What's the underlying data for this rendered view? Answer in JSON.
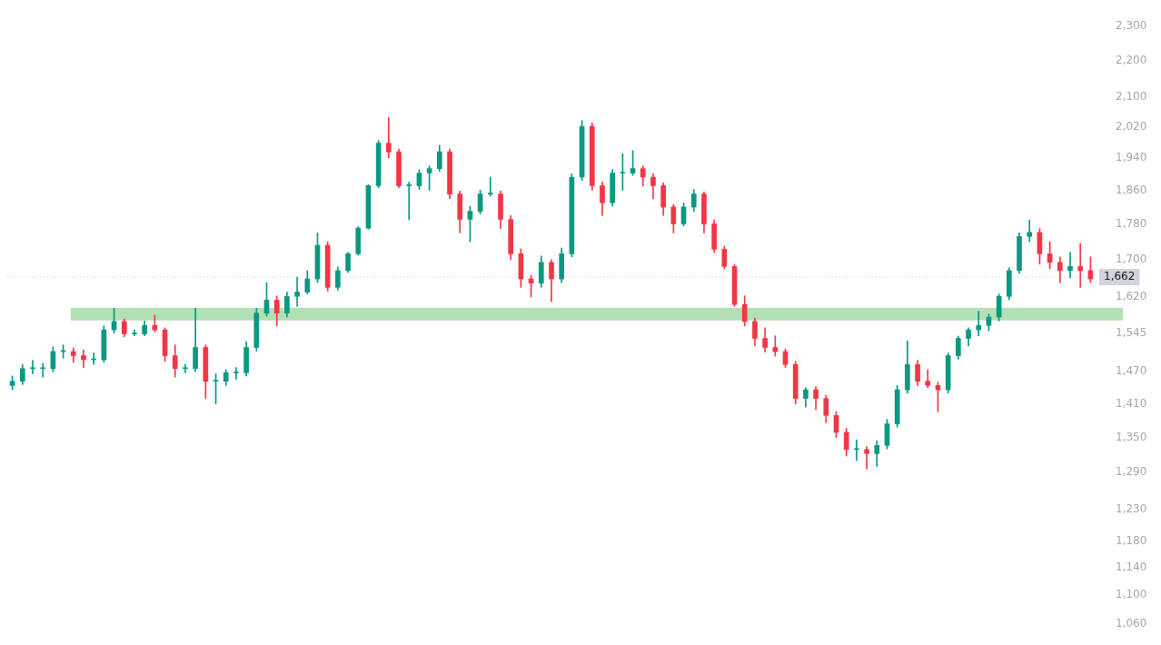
{
  "chart_data": {
    "type": "candlestick",
    "log": true,
    "tick_labels": "y",
    "grid": false,
    "legend": false,
    "categories": [
      null,
      null,
      null,
      null,
      null,
      null,
      null,
      null,
      null,
      null,
      null,
      null,
      null,
      null,
      null,
      null,
      null,
      null,
      null,
      null,
      null,
      null,
      null,
      null,
      null,
      null,
      null,
      null,
      null,
      null,
      null,
      null,
      null,
      null,
      null,
      null,
      null,
      null,
      null,
      null,
      null,
      null,
      null,
      null,
      null,
      null,
      null,
      null,
      null,
      null,
      null,
      null,
      null,
      null,
      null,
      null,
      null,
      null,
      null,
      null,
      null,
      null,
      null,
      null,
      null,
      null,
      null,
      null,
      null,
      null,
      null,
      null,
      null,
      null,
      null,
      null,
      null,
      null,
      null,
      null,
      null,
      null,
      null,
      null,
      null,
      null,
      null,
      null,
      null,
      null,
      null,
      null,
      null,
      null,
      null,
      null,
      null,
      null,
      null,
      null,
      null,
      null,
      null,
      null,
      null,
      null,
      null
    ],
    "ohlc": [
      [
        1444,
        1462,
        1436,
        1452
      ],
      [
        1452,
        1484,
        1446,
        1476
      ],
      [
        1476,
        1492,
        1466,
        1476
      ],
      [
        1476,
        1486,
        1460,
        1476
      ],
      [
        1476,
        1518,
        1470,
        1509
      ],
      [
        1509,
        1522,
        1496,
        1509
      ],
      [
        1509,
        1516,
        1488,
        1501
      ],
      [
        1501,
        1512,
        1478,
        1493
      ],
      [
        1493,
        1506,
        1484,
        1493
      ],
      [
        1493,
        1560,
        1488,
        1552
      ],
      [
        1552,
        1596,
        1546,
        1569
      ],
      [
        1569,
        1574,
        1538,
        1544
      ],
      [
        1544,
        1552,
        1540,
        1544
      ],
      [
        1544,
        1570,
        1540,
        1561
      ],
      [
        1561,
        1582,
        1548,
        1552
      ],
      [
        1552,
        1556,
        1490,
        1501
      ],
      [
        1501,
        1522,
        1460,
        1476
      ],
      [
        1476,
        1484,
        1468,
        1476
      ],
      [
        1476,
        1596,
        1470,
        1517
      ],
      [
        1517,
        1522,
        1420,
        1452
      ],
      [
        1452,
        1466,
        1410,
        1452
      ],
      [
        1452,
        1474,
        1444,
        1468
      ],
      [
        1468,
        1478,
        1456,
        1468
      ],
      [
        1468,
        1528,
        1462,
        1517
      ],
      [
        1517,
        1596,
        1510,
        1586
      ],
      [
        1586,
        1650,
        1580,
        1613
      ],
      [
        1613,
        1622,
        1560,
        1586
      ],
      [
        1586,
        1630,
        1578,
        1621
      ],
      [
        1621,
        1662,
        1600,
        1630
      ],
      [
        1630,
        1676,
        1626,
        1658
      ],
      [
        1658,
        1760,
        1650,
        1732
      ],
      [
        1732,
        1740,
        1632,
        1640
      ],
      [
        1640,
        1684,
        1634,
        1676
      ],
      [
        1676,
        1716,
        1672,
        1713
      ],
      [
        1713,
        1774,
        1710,
        1771
      ],
      [
        1771,
        1874,
        1768,
        1871
      ],
      [
        1871,
        1984,
        1866,
        1977
      ],
      [
        1977,
        2044,
        1940,
        1955
      ],
      [
        1955,
        1962,
        1866,
        1871
      ],
      [
        1871,
        1880,
        1790,
        1871
      ],
      [
        1871,
        1910,
        1862,
        1902
      ],
      [
        1902,
        1920,
        1860,
        1913
      ],
      [
        1913,
        1972,
        1906,
        1955
      ],
      [
        1955,
        1962,
        1840,
        1851
      ],
      [
        1851,
        1858,
        1760,
        1791
      ],
      [
        1791,
        1822,
        1740,
        1810
      ],
      [
        1810,
        1860,
        1804,
        1851
      ],
      [
        1851,
        1892,
        1846,
        1851
      ],
      [
        1851,
        1858,
        1770,
        1791
      ],
      [
        1791,
        1800,
        1700,
        1713
      ],
      [
        1713,
        1724,
        1640,
        1658
      ],
      [
        1658,
        1666,
        1620,
        1649
      ],
      [
        1649,
        1708,
        1640,
        1694
      ],
      [
        1694,
        1700,
        1610,
        1658
      ],
      [
        1658,
        1726,
        1650,
        1713
      ],
      [
        1713,
        1900,
        1706,
        1892
      ],
      [
        1892,
        2036,
        1884,
        2021
      ],
      [
        2021,
        2030,
        1860,
        1871
      ],
      [
        1871,
        1880,
        1800,
        1830
      ],
      [
        1830,
        1910,
        1822,
        1902
      ],
      [
        1902,
        1950,
        1860,
        1902
      ],
      [
        1902,
        1958,
        1896,
        1913
      ],
      [
        1913,
        1920,
        1870,
        1892
      ],
      [
        1892,
        1900,
        1840,
        1871
      ],
      [
        1871,
        1878,
        1800,
        1820
      ],
      [
        1820,
        1826,
        1760,
        1781
      ],
      [
        1781,
        1830,
        1776,
        1820
      ],
      [
        1820,
        1862,
        1810,
        1851
      ],
      [
        1851,
        1856,
        1760,
        1781
      ],
      [
        1781,
        1790,
        1716,
        1723
      ],
      [
        1723,
        1730,
        1680,
        1685
      ],
      [
        1685,
        1690,
        1600,
        1604
      ],
      [
        1604,
        1622,
        1560,
        1569
      ],
      [
        1569,
        1576,
        1520,
        1535
      ],
      [
        1535,
        1556,
        1508,
        1517
      ],
      [
        1517,
        1540,
        1500,
        1509
      ],
      [
        1509,
        1514,
        1478,
        1484
      ],
      [
        1484,
        1490,
        1410,
        1420
      ],
      [
        1420,
        1440,
        1404,
        1436
      ],
      [
        1436,
        1442,
        1400,
        1420
      ],
      [
        1420,
        1426,
        1376,
        1389
      ],
      [
        1389,
        1396,
        1350,
        1359
      ],
      [
        1359,
        1366,
        1318,
        1329
      ],
      [
        1329,
        1346,
        1310,
        1329
      ],
      [
        1329,
        1334,
        1296,
        1322
      ],
      [
        1322,
        1344,
        1300,
        1336
      ],
      [
        1336,
        1382,
        1330,
        1374
      ],
      [
        1374,
        1444,
        1368,
        1436
      ],
      [
        1436,
        1530,
        1430,
        1484
      ],
      [
        1484,
        1492,
        1444,
        1452
      ],
      [
        1452,
        1474,
        1440,
        1444
      ],
      [
        1444,
        1450,
        1396,
        1436
      ],
      [
        1436,
        1506,
        1430,
        1501
      ],
      [
        1501,
        1540,
        1494,
        1535
      ],
      [
        1535,
        1556,
        1520,
        1552
      ],
      [
        1552,
        1590,
        1540,
        1561
      ],
      [
        1561,
        1584,
        1550,
        1578
      ],
      [
        1578,
        1626,
        1570,
        1621
      ],
      [
        1621,
        1682,
        1614,
        1676
      ],
      [
        1676,
        1760,
        1670,
        1752
      ],
      [
        1752,
        1790,
        1740,
        1761
      ],
      [
        1761,
        1770,
        1690,
        1713
      ],
      [
        1713,
        1740,
        1680,
        1694
      ],
      [
        1694,
        1706,
        1650,
        1676
      ],
      [
        1676,
        1716,
        1660,
        1685
      ],
      [
        1685,
        1736,
        1640,
        1676
      ],
      [
        1676,
        1706,
        1650,
        1658
      ]
    ],
    "ylim": [
      1060,
      2300
    ],
    "yticks": [
      {
        "value": 1060,
        "label": "1,060"
      },
      {
        "value": 1100,
        "label": "1,100"
      },
      {
        "value": 1140,
        "label": "1,140"
      },
      {
        "value": 1180,
        "label": "1,180"
      },
      {
        "value": 1230,
        "label": "1,230"
      },
      {
        "value": 1290,
        "label": "1,290"
      },
      {
        "value": 1350,
        "label": "1,350"
      },
      {
        "value": 1410,
        "label": "1,410"
      },
      {
        "value": 1470,
        "label": "1,470"
      },
      {
        "value": 1545,
        "label": "1,545"
      },
      {
        "value": 1620,
        "label": "1,620"
      },
      {
        "value": 1700,
        "label": "1,700"
      },
      {
        "value": 1780,
        "label": "1,780"
      },
      {
        "value": 1860,
        "label": "1,860"
      },
      {
        "value": 1940,
        "label": "1,940"
      },
      {
        "value": 2020,
        "label": "2,020"
      },
      {
        "value": 2100,
        "label": "2,100"
      },
      {
        "value": 2200,
        "label": "2,200"
      },
      {
        "value": 2300,
        "label": "2,300"
      }
    ],
    "ref_lines": [
      {
        "axis": "y",
        "value": 1662,
        "label": "1,662",
        "line_style": "dotted",
        "color": "#c8cad2"
      }
    ],
    "bands": [
      {
        "axis": "y",
        "from": 1571,
        "to": 1597,
        "color": "#b2dfb4"
      }
    ]
  }
}
